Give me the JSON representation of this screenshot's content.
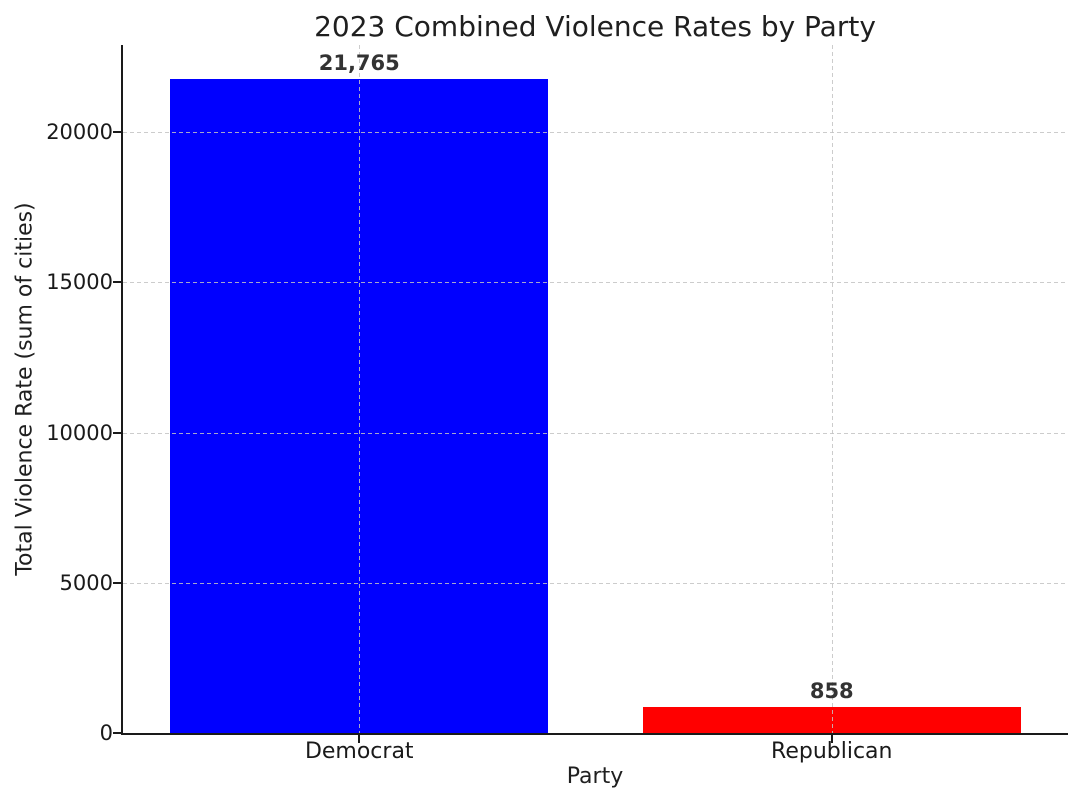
{
  "chart_data": {
    "type": "bar",
    "title": "2023 Combined Violence Rates by Party",
    "xlabel": "Party",
    "ylabel": "Total Violence Rate (sum of cities)",
    "categories": [
      "Democrat",
      "Republican"
    ],
    "values": [
      21765,
      858
    ],
    "value_labels": [
      "21,765",
      "858"
    ],
    "bar_colors": [
      "#0000ff",
      "#ff0000"
    ],
    "ylim": [
      0,
      22900
    ],
    "yticks": [
      0,
      5000,
      10000,
      15000,
      20000
    ],
    "ytick_labels": [
      "0",
      "5000",
      "10000",
      "15000",
      "20000"
    ],
    "grid": true,
    "grid_style": "dashed",
    "grid_color": "#c9c9c9",
    "bar_width_fraction": 0.8,
    "spines": [
      "left",
      "bottom"
    ],
    "legend": "none"
  }
}
